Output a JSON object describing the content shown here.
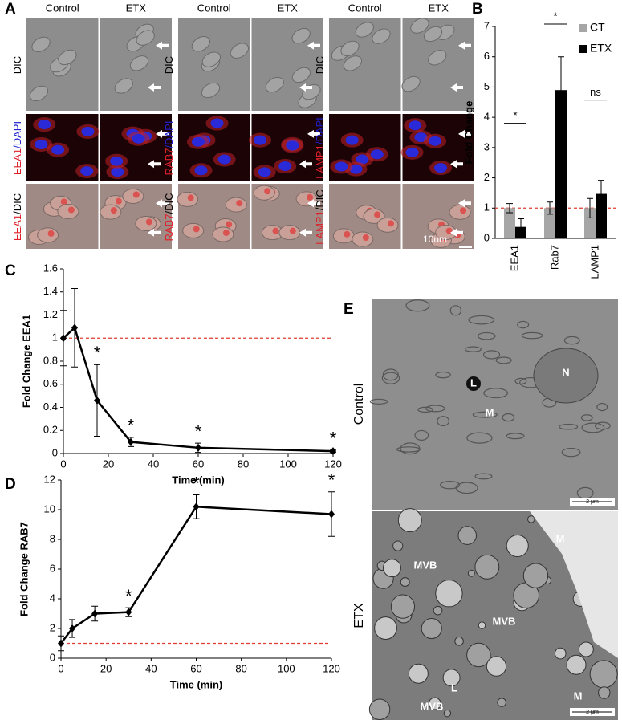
{
  "panel_labels": [
    "A",
    "B",
    "C",
    "D",
    "E"
  ],
  "panel_a": {
    "groups": [
      {
        "columns": [
          "Control",
          "ETX"
        ],
        "rows": [
          [
            "DIC"
          ],
          [
            "EEA1",
            "/DAPI"
          ],
          [
            "EEA1",
            "/DIC"
          ]
        ]
      },
      {
        "columns": [
          "Control",
          "ETX"
        ],
        "rows": [
          [
            "DIC"
          ],
          [
            "RAB7",
            "/DAPI"
          ],
          [
            "RAB7",
            "/DIC"
          ]
        ]
      },
      {
        "columns": [
          "Control",
          "ETX"
        ],
        "rows": [
          [
            "DIC"
          ],
          [
            "LAMP1",
            "/DAPI"
          ],
          [
            "LAMP1",
            "/DIC"
          ]
        ]
      }
    ],
    "scale_bar": "10um"
  },
  "panel_e": {
    "rows": [
      {
        "label": "Control",
        "marks": [
          "L",
          "N",
          "M"
        ]
      },
      {
        "label": "ETX",
        "marks": [
          "MVB",
          "M",
          "MVB",
          "MVB",
          "L",
          "M"
        ]
      }
    ],
    "scale_bar": "2 μm"
  },
  "chart_data": [
    {
      "type": "bar",
      "ylabel": "Fold Change",
      "categories": [
        "EEA1",
        "Rab7",
        "LAMP1"
      ],
      "series": [
        {
          "name": "CT",
          "color": "#a6a6a6",
          "values": [
            1,
            1,
            1
          ],
          "errors": [
            0.15,
            0.2,
            0.32
          ]
        },
        {
          "name": "ETX",
          "color": "#000000",
          "values": [
            0.38,
            4.9,
            1.47
          ],
          "errors": [
            0.27,
            1.1,
            0.45
          ]
        }
      ],
      "ylim": [
        0,
        7
      ],
      "yticks": [
        0,
        1,
        2,
        3,
        4,
        5,
        6,
        7
      ],
      "ref_line": 1,
      "ref_color": "#e03c31",
      "legend": "top-right",
      "annotations": [
        {
          "category": "EEA1",
          "text": "*"
        },
        {
          "category": "Rab7",
          "text": "*"
        },
        {
          "category": "LAMP1",
          "text": "ns"
        }
      ]
    },
    {
      "type": "line",
      "ylabel": "Fold Change EEA1",
      "xlabel": "Time (min)",
      "x": [
        0,
        5,
        15,
        30,
        60,
        120
      ],
      "series": [
        {
          "color": "#000000",
          "values": [
            1,
            1.09,
            0.46,
            0.1,
            0.05,
            0.02
          ],
          "errors": [
            0.24,
            0.34,
            0.31,
            0.04,
            0.04,
            0.01
          ]
        }
      ],
      "xlim": [
        0,
        120
      ],
      "xticks": [
        0,
        20,
        40,
        60,
        80,
        100,
        120
      ],
      "ylim": [
        0,
        1.6
      ],
      "yticks": [
        0,
        0.2,
        0.4,
        0.6,
        0.8,
        1,
        1.2,
        1.4,
        1.6
      ],
      "ref_line": 1,
      "ref_color": "#e03c31",
      "annotations": [
        {
          "x": 15,
          "text": "*"
        },
        {
          "x": 30,
          "text": "*"
        },
        {
          "x": 60,
          "text": "*"
        },
        {
          "x": 120,
          "text": "*"
        }
      ]
    },
    {
      "type": "line",
      "ylabel": "Fold Change RAB7",
      "xlabel": "Time (min)",
      "x": [
        0,
        5,
        15,
        30,
        60,
        120
      ],
      "series": [
        {
          "color": "#000000",
          "values": [
            1,
            2,
            3,
            3.1,
            10.2,
            9.7
          ],
          "errors": [
            0.5,
            0.6,
            0.5,
            0.3,
            0.8,
            1.5
          ]
        }
      ],
      "xlim": [
        0,
        120
      ],
      "xticks": [
        0,
        20,
        40,
        60,
        80,
        100,
        120
      ],
      "ylim": [
        0,
        12
      ],
      "yticks": [
        0,
        2,
        4,
        6,
        8,
        10,
        12
      ],
      "ref_line": 1,
      "ref_color": "#e03c31",
      "annotations": [
        {
          "x": 30,
          "text": "*"
        },
        {
          "x": 60,
          "text": "*"
        },
        {
          "x": 120,
          "text": "*"
        }
      ]
    }
  ]
}
